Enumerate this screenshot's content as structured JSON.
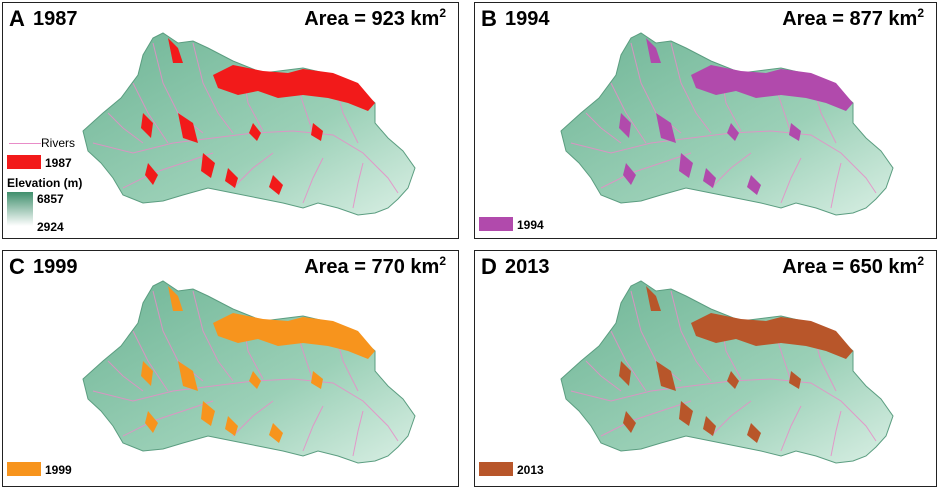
{
  "panels": [
    {
      "letter": "A",
      "year": "1987",
      "area": "Area = 923 km",
      "area_sup": "2",
      "color": "#f21a1a",
      "legend_label": "1987"
    },
    {
      "letter": "B",
      "year": "1994",
      "area": "Area = 877 km",
      "area_sup": "2",
      "color": "#b14aac",
      "legend_label": "1994"
    },
    {
      "letter": "C",
      "year": "1999",
      "area": "Area = 770 km",
      "area_sup": "2",
      "color": "#f7941d",
      "legend_label": "1999"
    },
    {
      "letter": "D",
      "year": "2013",
      "area": "Area = 650 km",
      "area_sup": "2",
      "color": "#b8562a",
      "legend_label": "2013"
    }
  ],
  "legend": {
    "rivers_label": "Rivers",
    "elevation_label": "Elevation (m)",
    "elev_max": "6857",
    "elev_min": "2924"
  },
  "colors": {
    "basin": "#8fc7ad",
    "basin_dark": "#4e9b7a",
    "river": "#e88cc8"
  }
}
